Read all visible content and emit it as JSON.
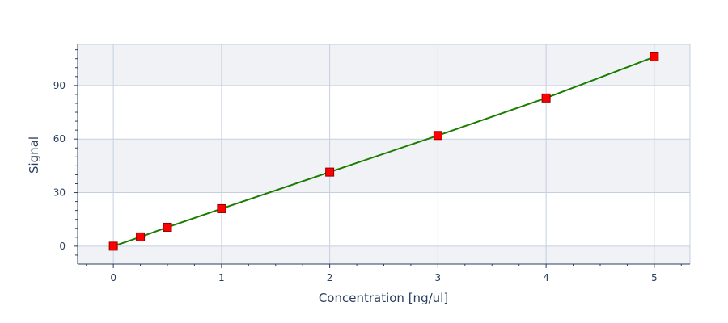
{
  "chart_data": {
    "type": "line",
    "title": "",
    "xlabel": "Concentration [ng/ul]",
    "ylabel": "Signal",
    "xlim": [
      -0.33,
      5.33
    ],
    "ylim": [
      -10,
      113
    ],
    "x_ticks": [
      0,
      1,
      2,
      3,
      4,
      5
    ],
    "y_ticks": [
      0,
      30,
      60,
      90
    ],
    "grid": true,
    "legend": "none",
    "series": [
      {
        "x": [
          0,
          0.25,
          0.5,
          1,
          2,
          3,
          4,
          5
        ],
        "y": [
          0,
          5.2,
          10.6,
          21,
          41.5,
          62,
          83,
          106
        ],
        "line_color": "#1a7d00",
        "marker": "square",
        "marker_color": "#ff0000"
      }
    ]
  },
  "colors": {
    "band": "#f0f2f6",
    "grid": "#c5cfe0",
    "axis": "#2a3f5f"
  }
}
